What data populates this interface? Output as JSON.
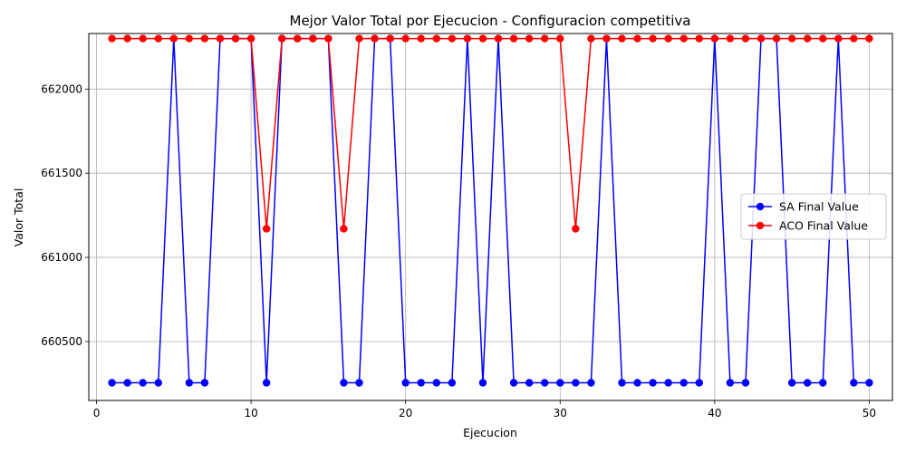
{
  "chart_data": {
    "type": "line",
    "title": "Mejor Valor Total por Ejecucion - Configuracion competitiva",
    "xlabel": "Ejecucion",
    "ylabel": "Valor Total",
    "xlim": [
      -0.5,
      51.5
    ],
    "ylim": [
      660150,
      662330
    ],
    "xticks": [
      0,
      10,
      20,
      30,
      40,
      50
    ],
    "yticks": [
      660500,
      661000,
      661500,
      662000
    ],
    "grid": true,
    "legend_position": "center-right",
    "x": [
      1,
      2,
      3,
      4,
      5,
      6,
      7,
      8,
      9,
      10,
      11,
      12,
      13,
      14,
      15,
      16,
      17,
      18,
      19,
      20,
      21,
      22,
      23,
      24,
      25,
      26,
      27,
      28,
      29,
      30,
      31,
      32,
      33,
      34,
      35,
      36,
      37,
      38,
      39,
      40,
      41,
      42,
      43,
      44,
      45,
      46,
      47,
      48,
      49,
      50
    ],
    "series": [
      {
        "name": "SA Final Value",
        "color": "#0000ff",
        "values": [
          660255,
          660255,
          660255,
          660255,
          662300,
          660255,
          660255,
          662300,
          662300,
          662300,
          660255,
          662300,
          662300,
          662300,
          662300,
          660255,
          660255,
          662300,
          662300,
          660255,
          660255,
          660255,
          660255,
          662300,
          660255,
          662300,
          660255,
          660255,
          660255,
          660255,
          660255,
          660255,
          662300,
          660255,
          660255,
          660255,
          660255,
          660255,
          660255,
          662300,
          660255,
          660255,
          662300,
          662300,
          660255,
          660255,
          660255,
          662300,
          660255,
          660255
        ]
      },
      {
        "name": "ACO Final Value",
        "color": "#ff0000",
        "values": [
          662300,
          662300,
          662300,
          662300,
          662300,
          662300,
          662300,
          662300,
          662300,
          662300,
          661170,
          662300,
          662300,
          662300,
          662300,
          661170,
          662300,
          662300,
          662300,
          662300,
          662300,
          662300,
          662300,
          662300,
          662300,
          662300,
          662300,
          662300,
          662300,
          662300,
          661170,
          662300,
          662300,
          662300,
          662300,
          662300,
          662300,
          662300,
          662300,
          662300,
          662300,
          662300,
          662300,
          662300,
          662300,
          662300,
          662300,
          662300,
          662300,
          662300
        ]
      }
    ]
  }
}
